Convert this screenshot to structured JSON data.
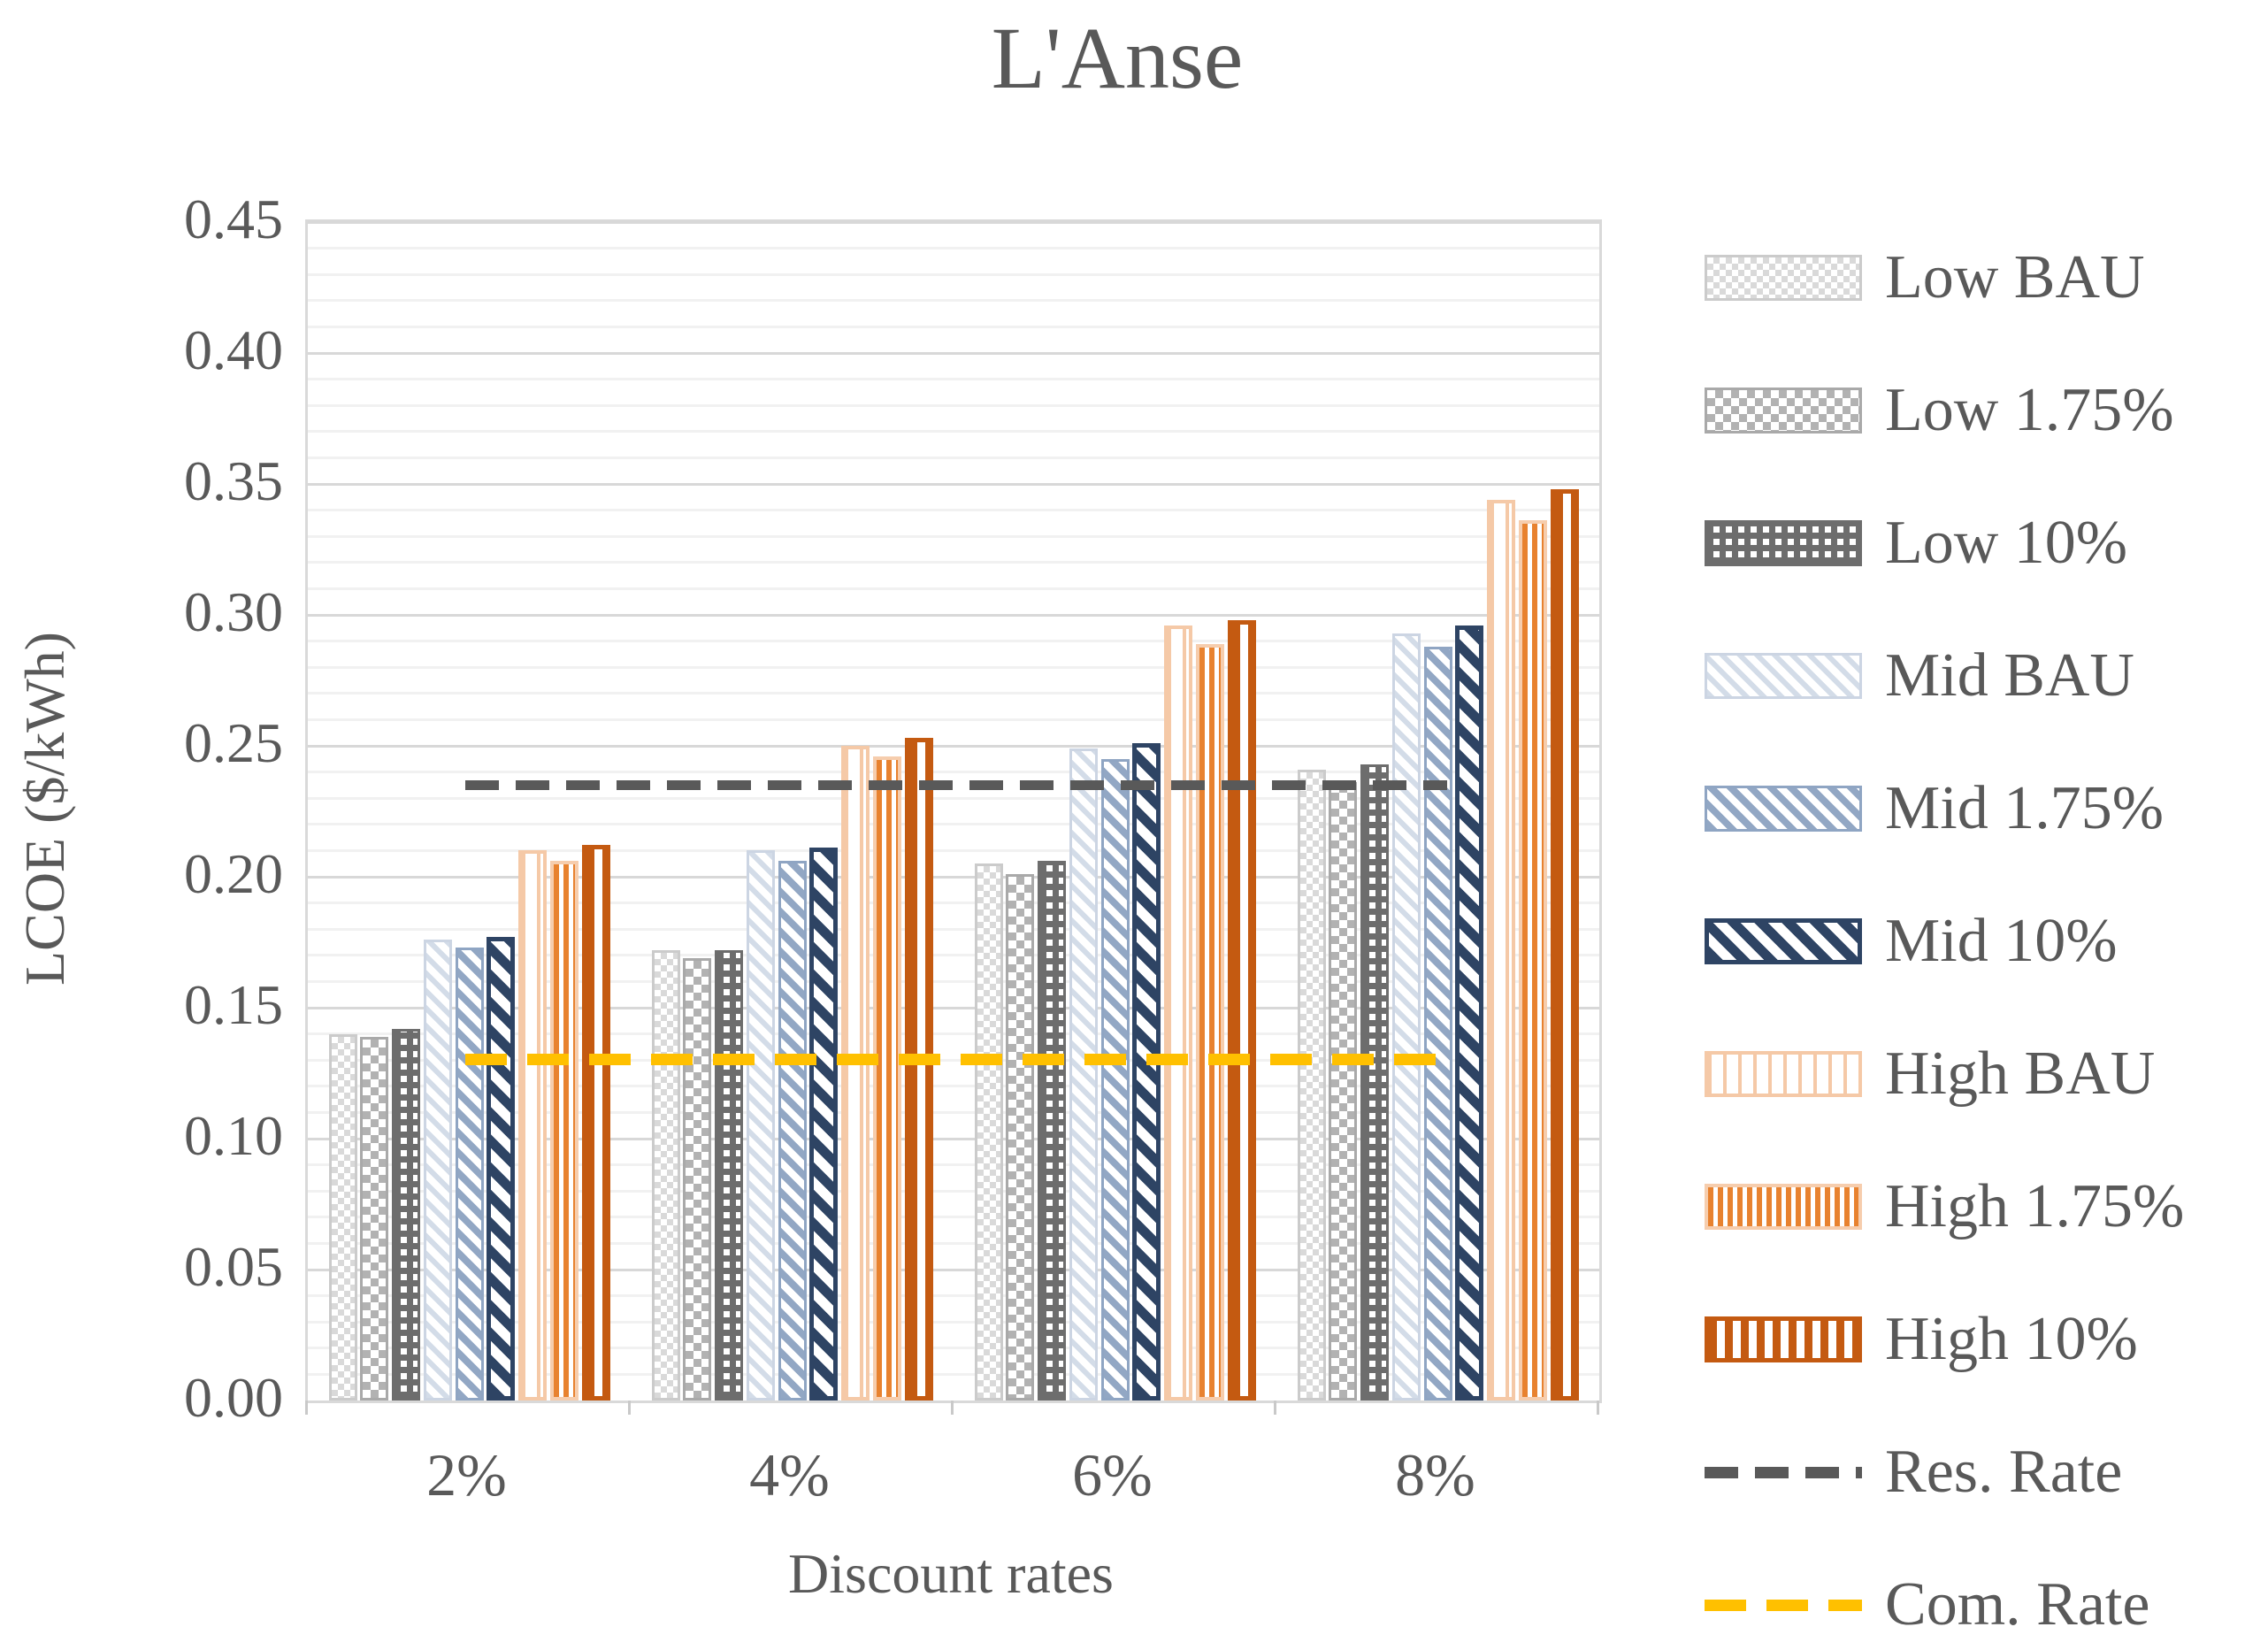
{
  "title": "L'Anse",
  "colors": {
    "text": "#595959",
    "grid_minor": "#f1f1f1",
    "grid_major": "#d8d8d8",
    "plot_border": "#d9d9d9",
    "res_rate_line": "#595959",
    "com_rate_line": "#ffc000",
    "low_bau": "#d9d9d9",
    "low_175": "#b2b2b2",
    "low_10": "#6d6d6d",
    "mid_bau": "#d3dce8",
    "mid_175": "#92a7c4",
    "mid_10": "#2e4464",
    "high_bau": "#f5c9a7",
    "high_175": "#e8822f",
    "high_10": "#c45a11"
  },
  "chart_data": {
    "type": "bar",
    "title": "L'Anse",
    "xlabel": "Discount rates",
    "ylabel": "LCOE ($/kWh)",
    "ylim": [
      0,
      0.45
    ],
    "ytick_step": 0.05,
    "minor_grid_step": 0.01,
    "grid": true,
    "legend_position": "right",
    "ytick_labels": [
      "0.00",
      "0.05",
      "0.10",
      "0.15",
      "0.20",
      "0.25",
      "0.30",
      "0.35",
      "0.40",
      "0.45"
    ],
    "categories": [
      "2%",
      "4%",
      "6%",
      "8%"
    ],
    "series": [
      {
        "name": "Low BAU",
        "pattern": "low-bau",
        "values": [
          0.14,
          0.172,
          0.205,
          0.241
        ]
      },
      {
        "name": "Low 1.75%",
        "pattern": "low-175",
        "values": [
          0.139,
          0.169,
          0.201,
          0.236
        ]
      },
      {
        "name": "Low 10%",
        "pattern": "low-10",
        "values": [
          0.142,
          0.172,
          0.206,
          0.243
        ]
      },
      {
        "name": "Mid BAU",
        "pattern": "mid-bau",
        "values": [
          0.176,
          0.21,
          0.249,
          0.293
        ]
      },
      {
        "name": "Mid 1.75%",
        "pattern": "mid-175",
        "values": [
          0.173,
          0.206,
          0.245,
          0.288
        ]
      },
      {
        "name": "Mid 10%",
        "pattern": "mid-10",
        "values": [
          0.177,
          0.211,
          0.251,
          0.296
        ]
      },
      {
        "name": "High BAU",
        "pattern": "high-bau",
        "values": [
          0.21,
          0.25,
          0.296,
          0.344
        ]
      },
      {
        "name": "High 1.75%",
        "pattern": "high-175",
        "values": [
          0.206,
          0.246,
          0.289,
          0.336
        ]
      },
      {
        "name": "High 10%",
        "pattern": "high-10",
        "values": [
          0.212,
          0.253,
          0.298,
          0.348
        ]
      }
    ],
    "lines": [
      {
        "name": "Res. Rate",
        "value": 0.235,
        "style": "res"
      },
      {
        "name": "Com. Rate",
        "value": 0.13,
        "style": "com"
      }
    ]
  }
}
